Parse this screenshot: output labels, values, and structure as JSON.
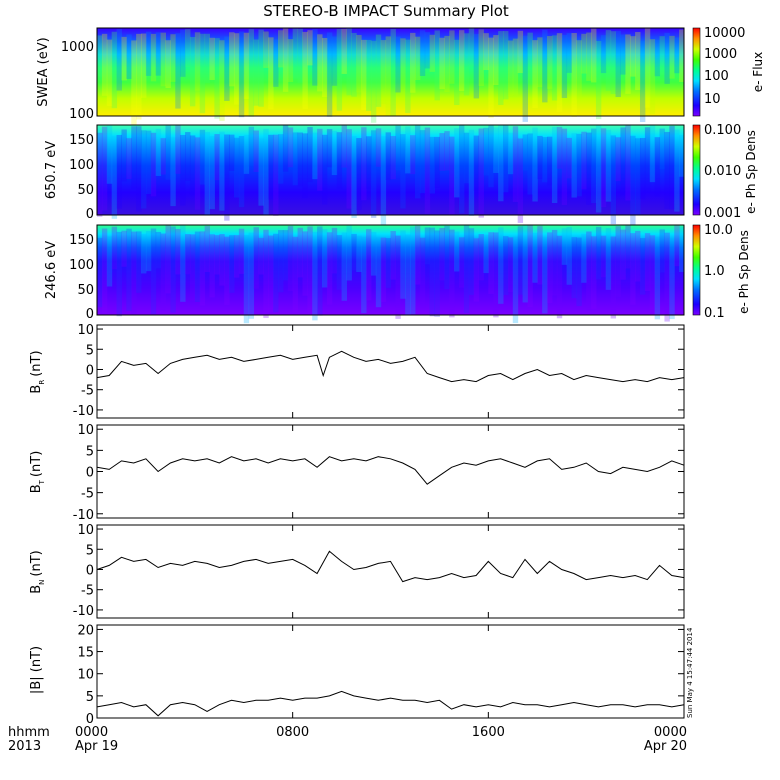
{
  "title": "STEREO-B IMPACT Summary Plot",
  "footer": {
    "row1_label": "hhmm",
    "row2_label": "2013",
    "ticks": [
      {
        "top": "0000",
        "bottom": "Apr 19"
      },
      {
        "top": "0800",
        "bottom": ""
      },
      {
        "top": "1600",
        "bottom": ""
      },
      {
        "top": "0000",
        "bottom": "Apr 20"
      }
    ]
  },
  "timestamp": "Sun May  4 15:47:44 2014",
  "colors": {
    "line": "#000000",
    "rainbow": [
      "#7a00ff",
      "#2a00ff",
      "#0044ff",
      "#00b0ff",
      "#00ffd0",
      "#10ff40",
      "#a0ff00",
      "#ffff00",
      "#ff9000",
      "#ff0000"
    ]
  },
  "chart_data": [
    {
      "type": "heatmap",
      "name": "swea",
      "ylabel": "SWEA (eV)",
      "yscale": "log",
      "ylim": [
        100,
        2000
      ],
      "yticks": [
        "1000",
        "100"
      ],
      "colorbar": {
        "label": "e- Flux",
        "scale": "log",
        "ticks": [
          "10000",
          "1000",
          "100",
          "10"
        ]
      }
    },
    {
      "type": "heatmap",
      "name": "pad650",
      "ylabel": "650.7 eV",
      "ylim": [
        0,
        180
      ],
      "yticks": [
        "150",
        "100",
        "50",
        "0"
      ],
      "colorbar": {
        "label": "e- Ph Sp Dens",
        "scale": "log",
        "ticks": [
          "0.100",
          "0.010",
          "0.001"
        ]
      }
    },
    {
      "type": "heatmap",
      "name": "pad246",
      "ylabel": "246.6 eV",
      "ylim": [
        0,
        180
      ],
      "yticks": [
        "150",
        "100",
        "50",
        "0"
      ],
      "colorbar": {
        "label": "e- Ph Sp Dens",
        "scale": "log",
        "ticks": [
          "10.0",
          "1.0",
          "0.1"
        ]
      }
    },
    {
      "type": "line",
      "name": "br",
      "ylabel": "BR (nT)",
      "ylabel_main": "B",
      "ylabel_sub": "R",
      "ylabel_unit": "(nT)",
      "ylim": [
        -12,
        11
      ],
      "yticks": [
        10,
        5,
        0,
        -5,
        -10
      ],
      "x": [
        0,
        0.5,
        1,
        1.5,
        2,
        2.5,
        3,
        3.5,
        4,
        4.5,
        5,
        5.5,
        6,
        6.5,
        7,
        7.5,
        8,
        8.5,
        9,
        9.25,
        9.5,
        10,
        10.5,
        11,
        11.5,
        12,
        12.5,
        13,
        13.5,
        14,
        14.5,
        15,
        15.5,
        16,
        16.5,
        17,
        17.5,
        18,
        18.5,
        19,
        19.5,
        20,
        20.5,
        21,
        21.5,
        22,
        22.5,
        23,
        23.5,
        24
      ],
      "y": [
        -2,
        -1.5,
        2,
        1,
        1.5,
        -1,
        1.5,
        2.5,
        3,
        3.5,
        2.5,
        3,
        2,
        2.5,
        3,
        3.5,
        2.5,
        3,
        3.5,
        -1.5,
        3,
        4.5,
        3,
        2,
        2.5,
        1.5,
        2,
        3,
        -1,
        -2,
        -3,
        -2.5,
        -3,
        -1.5,
        -1,
        -2.5,
        -1,
        0,
        -1.5,
        -1,
        -2.5,
        -1.5,
        -2,
        -2.5,
        -3,
        -2.5,
        -3,
        -2,
        -2.5,
        -2
      ]
    },
    {
      "type": "line",
      "name": "bt",
      "ylabel": "BT (nT)",
      "ylabel_main": "B",
      "ylabel_sub": "T",
      "ylabel_unit": "(nT)",
      "ylim": [
        -11,
        11
      ],
      "yticks": [
        10,
        5,
        0,
        -5,
        -10
      ],
      "x": [
        0,
        0.5,
        1,
        1.5,
        2,
        2.5,
        3,
        3.5,
        4,
        4.5,
        5,
        5.5,
        6,
        6.5,
        7,
        7.5,
        8,
        8.5,
        9,
        9.5,
        10,
        10.5,
        11,
        11.5,
        12,
        12.5,
        13,
        13.5,
        14,
        14.5,
        15,
        15.5,
        16,
        16.5,
        17,
        17.5,
        18,
        18.5,
        19,
        19.5,
        20,
        20.5,
        21,
        21.5,
        22,
        22.5,
        23,
        23.5,
        24
      ],
      "y": [
        1,
        0.5,
        2.5,
        2,
        3,
        0,
        2,
        3,
        2.5,
        3,
        2,
        3.5,
        2.5,
        3,
        2,
        3,
        2.5,
        3,
        1,
        3.5,
        2.5,
        3,
        2.5,
        3.5,
        3,
        2,
        0.5,
        -3,
        -1,
        1,
        2,
        1.5,
        2.5,
        3,
        2,
        1,
        2.5,
        3,
        0.5,
        1,
        2,
        0,
        -0.5,
        1,
        0.5,
        0,
        1,
        2.5,
        1.5
      ]
    },
    {
      "type": "line",
      "name": "bn",
      "ylabel": "BN (nT)",
      "ylabel_main": "B",
      "ylabel_sub": "N",
      "ylabel_unit": "(nT)",
      "ylim": [
        -12,
        11
      ],
      "yticks": [
        10,
        5,
        0,
        -5,
        -10
      ],
      "x": [
        0,
        0.5,
        1,
        1.5,
        2,
        2.5,
        3,
        3.5,
        4,
        4.5,
        5,
        5.5,
        6,
        6.5,
        7,
        7.5,
        8,
        8.5,
        9,
        9.5,
        10,
        10.5,
        11,
        11.5,
        12,
        12.5,
        13,
        13.5,
        14,
        14.5,
        15,
        15.5,
        16,
        16.5,
        17,
        17.5,
        18,
        18.5,
        19,
        19.5,
        20,
        20.5,
        21,
        21.5,
        22,
        22.5,
        23,
        23.5,
        24
      ],
      "y": [
        0,
        1,
        3,
        2,
        2.5,
        0.5,
        1.5,
        1,
        2,
        1.5,
        0.5,
        1,
        2,
        2.5,
        1.5,
        2,
        2.5,
        1,
        -1,
        4.5,
        2,
        0,
        0.5,
        1.5,
        2,
        -3,
        -2,
        -2.5,
        -2,
        -1,
        -2,
        -1.5,
        2,
        -1,
        -2,
        2.5,
        -1,
        2,
        0,
        -1,
        -2.5,
        -2,
        -1.5,
        -2,
        -1.5,
        -2.5,
        1,
        -1.5,
        -2
      ]
    },
    {
      "type": "line",
      "name": "bmag",
      "ylabel": "|B| (nT)",
      "ylim": [
        0,
        21
      ],
      "yticks": [
        20,
        15,
        10,
        5,
        0
      ],
      "x": [
        0,
        0.5,
        1,
        1.5,
        2,
        2.5,
        3,
        3.5,
        4,
        4.5,
        5,
        5.5,
        6,
        6.5,
        7,
        7.5,
        8,
        8.5,
        9,
        9.5,
        10,
        10.5,
        11,
        11.5,
        12,
        12.5,
        13,
        13.5,
        14,
        14.5,
        15,
        15.5,
        16,
        16.5,
        17,
        17.5,
        18,
        18.5,
        19,
        19.5,
        20,
        20.5,
        21,
        21.5,
        22,
        22.5,
        23,
        23.5,
        24
      ],
      "y": [
        2.5,
        3,
        3.5,
        2.5,
        3,
        0.5,
        3,
        3.5,
        3,
        1.5,
        3,
        4,
        3.5,
        4,
        4,
        4.5,
        4,
        4.5,
        4.5,
        5,
        6,
        5,
        4.5,
        4,
        4.5,
        4,
        4,
        3.5,
        4,
        2,
        3,
        2.5,
        3,
        2.5,
        3.5,
        3,
        3,
        2.5,
        3,
        3.5,
        3,
        2.5,
        3,
        3,
        2.5,
        3,
        3,
        2.5,
        3
      ]
    }
  ],
  "xaxis": {
    "range_hours": [
      0,
      24
    ],
    "tick_hours": [
      0,
      8,
      16,
      24
    ]
  }
}
